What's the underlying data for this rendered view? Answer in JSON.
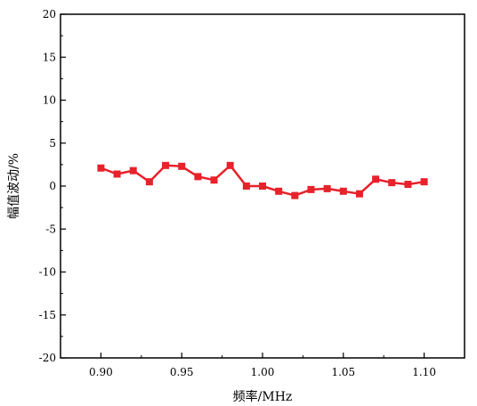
{
  "chart_data": {
    "type": "line",
    "title": "",
    "xlabel": "频率/MHz",
    "ylabel": "幅值波动/%",
    "xlim": [
      0.875,
      1.125
    ],
    "ylim": [
      -20,
      20
    ],
    "x_ticks": [
      0.9,
      0.95,
      1.0,
      1.05,
      1.1
    ],
    "x_tick_labels": [
      "0.90",
      "0.95",
      "1.00",
      "1.05",
      "1.10"
    ],
    "y_ticks": [
      20,
      15,
      10,
      5,
      0,
      -5,
      -10,
      -15,
      -20
    ],
    "y_tick_labels": [
      "20",
      "15",
      "10",
      "5",
      "0",
      "-5",
      "-10",
      "-15",
      "-20"
    ],
    "grid": false,
    "legend": "none",
    "series": [
      {
        "color": "#e8212a",
        "marker": "square",
        "x": [
          0.9,
          0.91,
          0.92,
          0.93,
          0.94,
          0.95,
          0.96,
          0.97,
          0.98,
          0.99,
          1.0,
          1.01,
          1.02,
          1.03,
          1.04,
          1.05,
          1.06,
          1.07,
          1.08,
          1.09,
          1.1
        ],
        "y": [
          2.1,
          1.4,
          1.8,
          0.5,
          2.4,
          2.3,
          1.1,
          0.7,
          2.4,
          0.0,
          0.0,
          -0.6,
          -1.1,
          -0.4,
          -0.3,
          -0.6,
          -0.9,
          0.8,
          0.4,
          0.2,
          0.5
        ]
      }
    ]
  }
}
